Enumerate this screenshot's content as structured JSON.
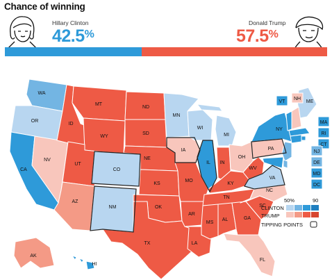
{
  "header": {
    "title": "Chance of winning"
  },
  "candidates": {
    "dem": {
      "name": "Hillary Clinton",
      "pct_main": "42.5",
      "pct_sign": "%",
      "color": "#2e9ad9",
      "share": 42.5
    },
    "rep": {
      "name": "Donald Trump",
      "pct_main": "57.5",
      "pct_sign": "%",
      "color": "#ee5a45",
      "share": 57.5
    }
  },
  "palette": {
    "D3": "#2e9ad9",
    "D2": "#73b5e3",
    "D1": "#b8d6f0",
    "R1": "#f8c6bc",
    "R2": "#f49a86",
    "R3": "#ee5a45"
  },
  "legend": {
    "low": "50%",
    "high": "90",
    "dem_label": "CLINTON",
    "rep_label": "TRUMP",
    "tipping_label": "TIPPING POINTS"
  },
  "states": {
    "WA": "D2",
    "OR": "D1",
    "CA": "D3",
    "NV": "R1",
    "ID": "R3",
    "MT": "R3",
    "WY": "R3",
    "UT": "R3",
    "AZ": "R2",
    "CO": "D1",
    "NM": "D1",
    "ND": "R3",
    "SD": "R3",
    "NE": "R3",
    "KS": "R3",
    "OK": "R3",
    "TX": "R3",
    "MN": "D1",
    "IA": "R1",
    "MO": "R3",
    "AR": "R3",
    "LA": "R3",
    "WI": "D1",
    "IL": "D3",
    "MI": "D1",
    "IN": "R3",
    "OH": "R1",
    "KY": "R3",
    "TN": "R3",
    "MS": "R3",
    "AL": "R3",
    "GA": "R3",
    "FL": "R1",
    "SC": "R3",
    "NC": "R1",
    "VA": "D1",
    "WV": "R3",
    "PA": "R1",
    "NY": "D3",
    "ME": "D1",
    "VT": "D3",
    "NH": "R1",
    "MA": "D3",
    "RI": "D3",
    "CT": "D3",
    "NJ": "D2",
    "DE": "D2",
    "MD": "D3",
    "DC": "D3",
    "AK": "R2",
    "HI": "D3"
  },
  "tipping_points": [
    "CO",
    "IA",
    "VA",
    "PA",
    "IL",
    "NM"
  ]
}
